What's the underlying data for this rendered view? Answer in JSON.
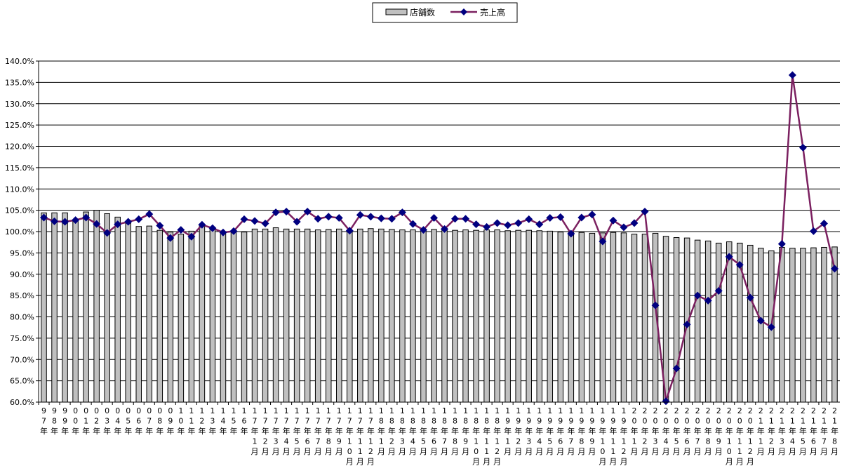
{
  "chart_data": {
    "type": "bar+line",
    "title": "",
    "ylim": [
      60,
      140
    ],
    "ystep": 5,
    "grid": true,
    "legend": "top-center",
    "series": [
      {
        "name": "店舗数",
        "kind": "bar",
        "color": "#c0c0c0",
        "values": [
          104.4,
          104.4,
          104.4,
          102.6,
          104.6,
          105.0,
          104.2,
          103.4,
          102.0,
          101.2,
          101.3,
          100.3,
          99.9,
          99.4,
          100.1,
          101.3,
          100.7,
          100.0,
          100.0,
          99.9,
          100.6,
          100.6,
          100.9,
          100.6,
          100.6,
          100.6,
          100.4,
          100.5,
          100.6,
          100.1,
          100.6,
          100.7,
          100.6,
          100.5,
          100.4,
          100.4,
          100.6,
          100.5,
          100.6,
          100.3,
          100.4,
          100.3,
          100.4,
          100.4,
          100.2,
          100.3,
          100.3,
          100.2,
          100.1,
          99.9,
          99.8,
          99.8,
          99.6,
          99.7,
          99.8,
          99.7,
          99.4,
          99.4,
          99.6,
          98.9,
          98.6,
          98.5,
          98.0,
          97.8,
          97.3,
          97.6,
          97.3,
          96.8,
          96.1,
          95.5,
          96.3,
          96.1,
          96.1,
          96.2,
          96.3,
          96.4
        ]
      },
      {
        "name": "売上高",
        "kind": "line",
        "color": "#7b2060",
        "marker_color": "#000080",
        "values": [
          103.3,
          102.4,
          102.3,
          102.7,
          103.3,
          101.8,
          99.7,
          101.7,
          102.3,
          102.9,
          104.1,
          101.4,
          98.5,
          100.4,
          98.8,
          101.6,
          100.8,
          99.8,
          100.1,
          102.9,
          102.5,
          101.9,
          104.5,
          104.7,
          102.3,
          104.7,
          103.0,
          103.5,
          103.2,
          100.2,
          103.9,
          103.5,
          103.1,
          103.0,
          104.5,
          101.8,
          100.4,
          103.2,
          100.6,
          103.0,
          103.0,
          101.7,
          101.1,
          102.0,
          101.5,
          102.0,
          102.9,
          101.7,
          103.2,
          103.4,
          99.5,
          103.3,
          104.0,
          97.7,
          102.6,
          101.0,
          102.0,
          104.7,
          82.7,
          60.2,
          67.9,
          78.2,
          85.0,
          83.8,
          86.1,
          94.1,
          92.2,
          84.5,
          79.1,
          77.6,
          97.1,
          136.7,
          119.7,
          100.1,
          101.9,
          91.3
        ]
      }
    ],
    "ytick_labels": [
      "60.0%",
      "65.0%",
      "70.0%",
      "75.0%",
      "80.0%",
      "85.0%",
      "90.0%",
      "95.0%",
      "100.0%",
      "105.0%",
      "110.0%",
      "115.0%",
      "120.0%",
      "125.0%",
      "130.0%",
      "135.0%",
      "140.0%"
    ],
    "x_labels": [
      "97年",
      "98年",
      "99年",
      "00年",
      "01年",
      "02年",
      "03年",
      "04年",
      "05年",
      "06年",
      "07年",
      "08年",
      "09年",
      "10年",
      "11年",
      "12年",
      "13年",
      "14年",
      "15年",
      "16年",
      "17年1月",
      "17年2月",
      "17年3月",
      "17年4月",
      "17年5月",
      "17年6月",
      "17年7月",
      "17年8月",
      "17年9月",
      "17年10月",
      "17年11月",
      "17年12月",
      "18年1月",
      "18年2月",
      "18年3月",
      "18年4月",
      "18年5月",
      "18年6月",
      "18年7月",
      "18年8月",
      "18年9月",
      "18年10月",
      "18年11月",
      "18年12月",
      "19年1月",
      "19年2月",
      "19年3月",
      "19年4月",
      "19年5月",
      "19年6月",
      "19年7月",
      "19年8月",
      "19年9月",
      "19年10月",
      "19年11月",
      "19年12月",
      "20年1月",
      "20年2月",
      "20年3月",
      "20年4月",
      "20年5月",
      "20年6月",
      "20年7月",
      "20年8月",
      "20年9月",
      "20年10月",
      "20年11月",
      "20年12月",
      "21年1月",
      "21年2月",
      "21年3月",
      "21年4月",
      "21年5月",
      "21年6月",
      "21年7月",
      "21年8月"
    ]
  }
}
